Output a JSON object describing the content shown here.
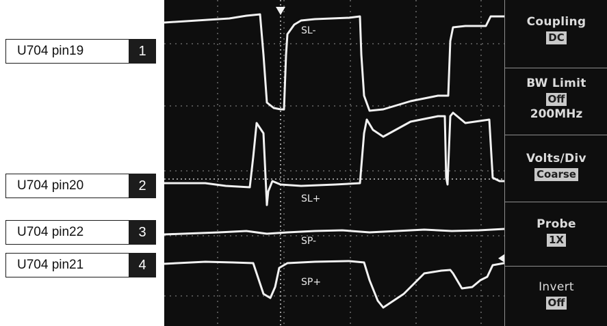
{
  "channels": [
    {
      "label": "U704 pin19",
      "number": "1"
    },
    {
      "label": "U704 pin20",
      "number": "2"
    },
    {
      "label": "U704 pin22",
      "number": "3"
    },
    {
      "label": "U704 pin21",
      "number": "4"
    }
  ],
  "traces": {
    "sl_minus": "SL-",
    "sl_plus": "SL+",
    "sp_minus": "SP-",
    "sp_plus": "SP+"
  },
  "menu": {
    "coupling": {
      "title": "Coupling",
      "value": "DC"
    },
    "bw_limit": {
      "title": "BW Limit",
      "value": "Off",
      "sub": "200MHz"
    },
    "volts_div": {
      "title": "Volts/Div",
      "value": "Coarse"
    },
    "probe": {
      "title": "Probe",
      "value": "1X"
    },
    "invert": {
      "title": "Invert",
      "value": "Off"
    }
  },
  "colors": {
    "screen": "#0e0e0e",
    "trace": "#f2f2f2",
    "grid": "#7a7a7a",
    "label_box": "#1c1c1c"
  }
}
